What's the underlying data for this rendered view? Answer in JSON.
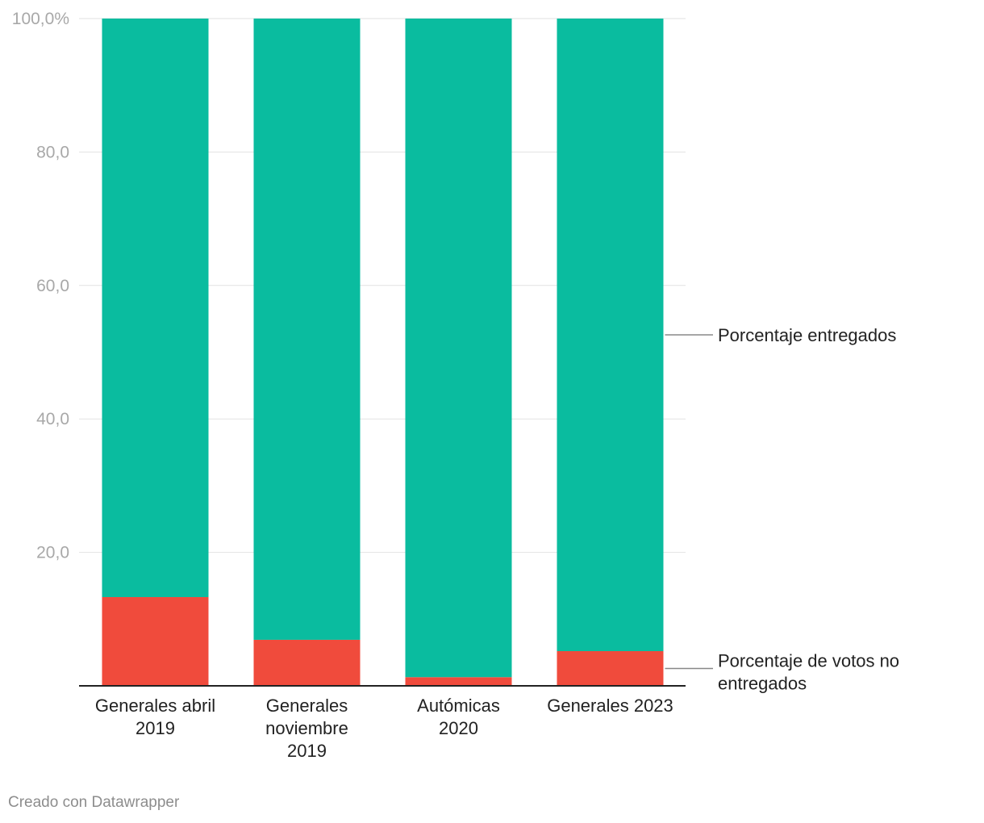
{
  "chart_data": {
    "type": "bar",
    "stacked": true,
    "categories": [
      [
        "Generales abril",
        "2019"
      ],
      [
        "Generales",
        "noviembre",
        "2019"
      ],
      [
        "Autómicas",
        "2020"
      ],
      [
        "Generales 2023"
      ]
    ],
    "series": [
      {
        "name": "Porcentaje de votos no entregados",
        "label_lines": [
          "Porcentaje de votos no",
          "entregados"
        ],
        "color": "#f04b3c",
        "values": [
          13.3,
          6.9,
          1.3,
          5.2
        ]
      },
      {
        "name": "Porcentaje entregados",
        "label_lines": [
          "Porcentaje entregados"
        ],
        "color": "#0abc9f",
        "values": [
          86.7,
          93.1,
          98.7,
          94.8
        ]
      }
    ],
    "y_ticks": [
      "20,0",
      "40,0",
      "60,0",
      "80,0",
      "100,0%"
    ],
    "ylim": [
      0,
      100
    ],
    "grid": true,
    "legend": "right, inline labels"
  },
  "footer": {
    "credit": "Creado con Datawrapper"
  }
}
